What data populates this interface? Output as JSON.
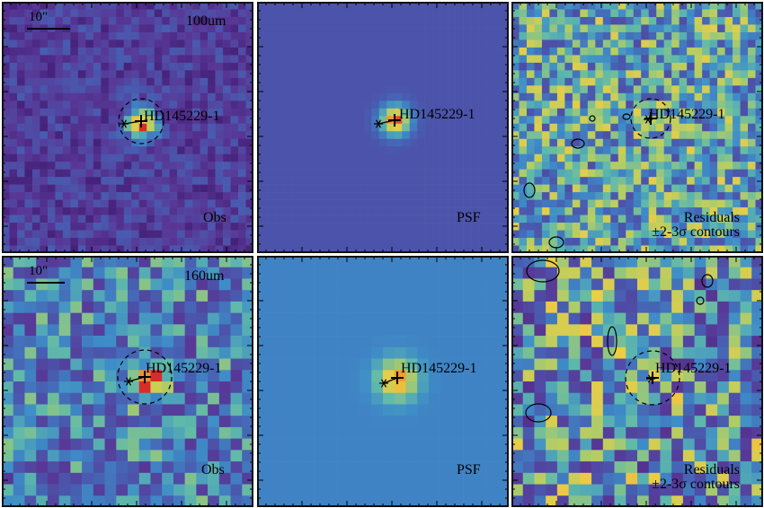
{
  "source_name": "HD145229-1",
  "rows": [
    {
      "wavelength": "100um",
      "scale_label": "10\"",
      "panels": [
        {
          "kind": "obs",
          "label": "Obs"
        },
        {
          "kind": "psf",
          "label": "PSF"
        },
        {
          "kind": "res",
          "label_line1": "Residuals",
          "label_line2": "±2-3σ contours"
        }
      ]
    },
    {
      "wavelength": "160um",
      "scale_label": "10\"",
      "panels": [
        {
          "kind": "obs",
          "label": "Obs"
        },
        {
          "kind": "psf",
          "label": "PSF"
        },
        {
          "kind": "res",
          "label_line1": "Residuals",
          "label_line2": "±2-3σ contours"
        }
      ]
    }
  ],
  "colors": {
    "frame": "#111111",
    "psf_bg_100": "#3b55a8",
    "psf_bg_160": "#4f98cf",
    "source_core": "#d9342b",
    "source_mid": "#f0a33a"
  }
}
